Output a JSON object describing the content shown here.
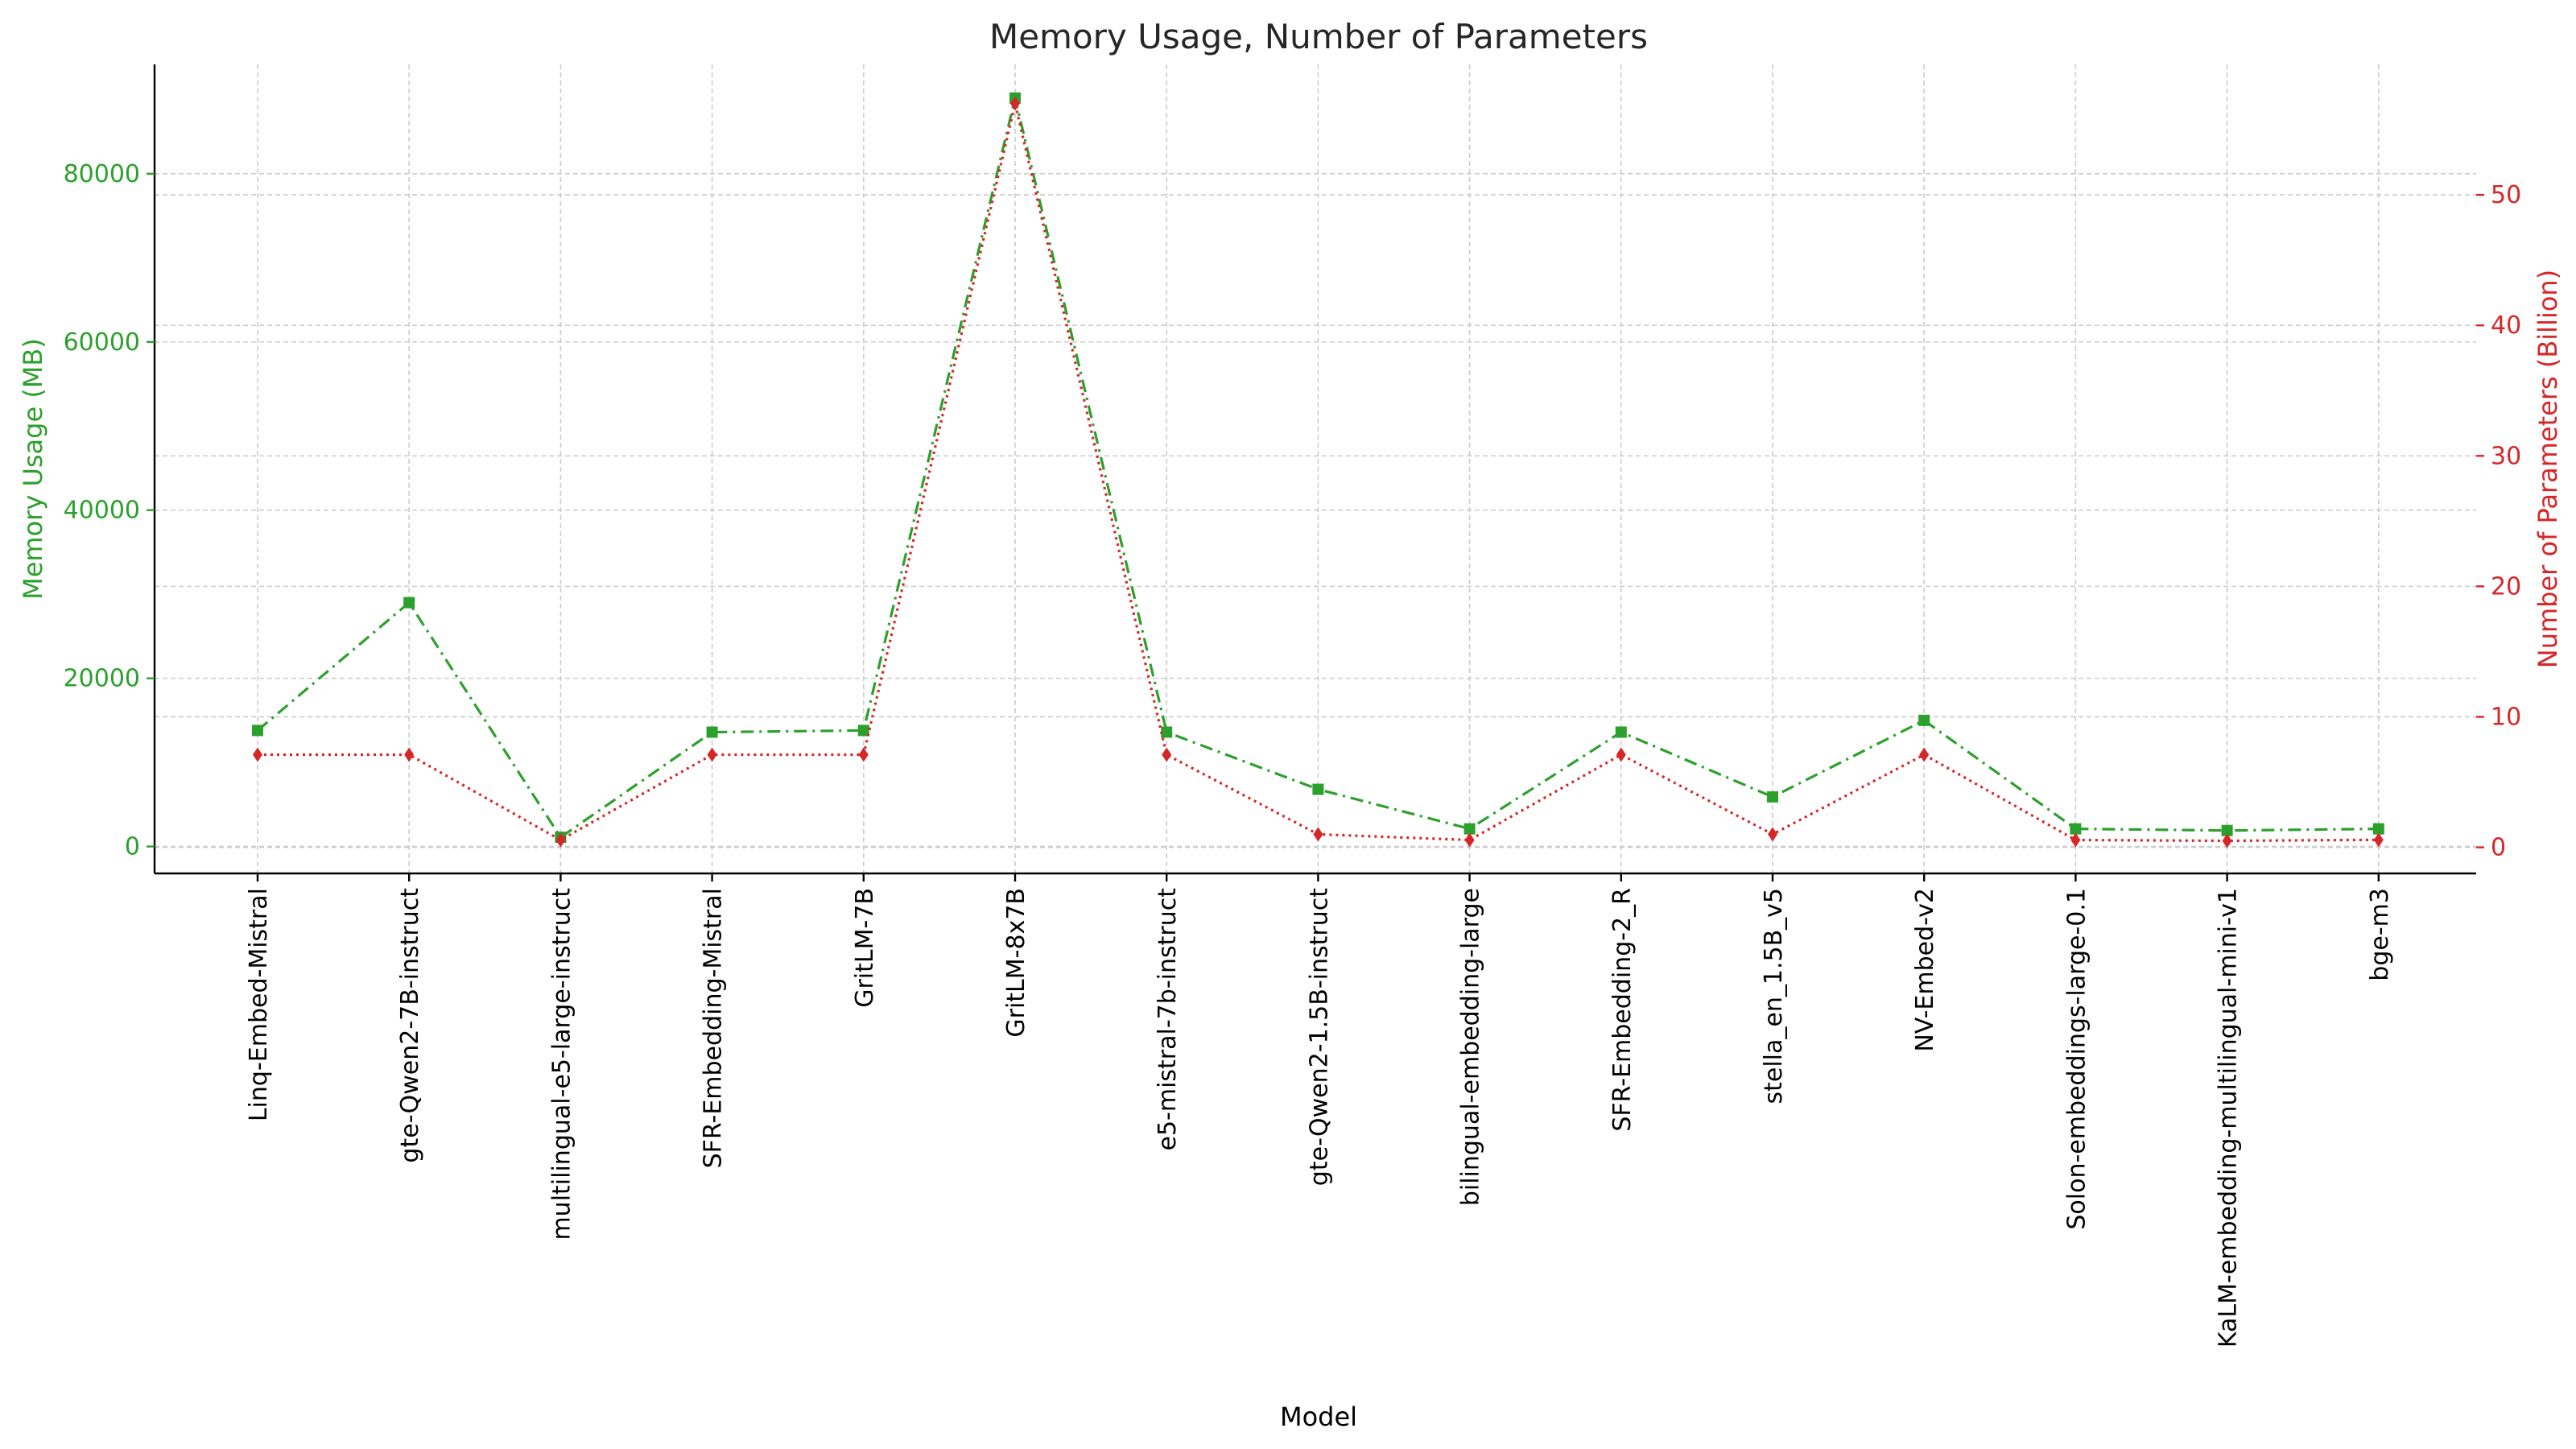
{
  "chart_data": {
    "type": "line",
    "title": "Memory Usage, Number of Parameters",
    "xlabel": "Model",
    "categories": [
      "Linq-Embed-Mistral",
      "gte-Qwen2-7B-instruct",
      "multilingual-e5-large-instruct",
      "SFR-Embedding-Mistral",
      "GritLM-7B",
      "GritLM-8x7B",
      "e5-mistral-7b-instruct",
      "gte-Qwen2-1.5B-instruct",
      "bilingual-embedding-large",
      "SFR-Embedding-2_R",
      "stella_en_1.5B_v5",
      "NV-Embed-v2",
      "Solon-embeddings-large-0.1",
      "KaLM-embedding-multilingual-mini-v1",
      "bge-m3"
    ],
    "y_left": {
      "label": "Memory Usage (MB)",
      "ylim": [
        -3200,
        93000
      ],
      "ticks": [
        0,
        20000,
        40000,
        60000,
        80000
      ],
      "color": "#2ca02c"
    },
    "y_right": {
      "label": "Number of Parameters (Billion)",
      "ylim": [
        -2.0,
        60.0
      ],
      "ticks": [
        0,
        10,
        20,
        30,
        40,
        50
      ],
      "color": "#d62728"
    },
    "series": [
      {
        "axis": "left",
        "color": "#2ca02c",
        "marker": "square",
        "linestyle": "dashdot",
        "values": [
          13800,
          29000,
          1100,
          13600,
          13800,
          89000,
          13600,
          6800,
          2100,
          13600,
          5900,
          15000,
          2100,
          1900,
          2100
        ]
      },
      {
        "axis": "right",
        "color": "#d62728",
        "marker": "diamond",
        "linestyle": "dotted",
        "values": [
          7.1,
          7.1,
          0.56,
          7.1,
          7.1,
          57.0,
          7.1,
          1.0,
          0.56,
          7.1,
          1.0,
          7.1,
          0.56,
          0.5,
          0.57
        ]
      }
    ],
    "grid": true
  }
}
